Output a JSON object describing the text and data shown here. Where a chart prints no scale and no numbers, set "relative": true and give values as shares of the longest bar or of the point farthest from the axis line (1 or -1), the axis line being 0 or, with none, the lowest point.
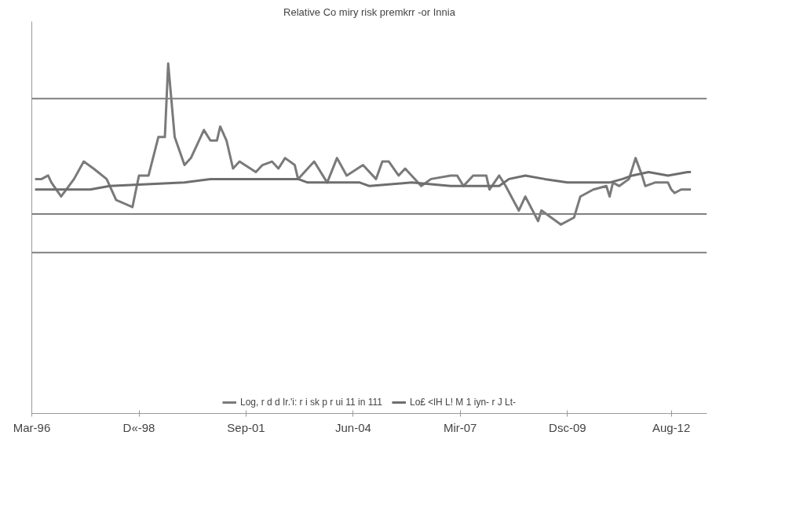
{
  "chart_data": {
    "type": "line",
    "title": "Relative Co miry risk premkrr -or Innia",
    "relative": true,
    "grid": false,
    "legend": "bottom",
    "marker": "none",
    "line_style": "solid",
    "xlim": [
      "1996-03",
      "2013-07"
    ],
    "xticks": [
      {
        "value": "1996-03",
        "label": "Mar-96"
      },
      {
        "value": "1998-12",
        "label": "D«-98"
      },
      {
        "value": "2001-09",
        "label": "Sep-01"
      },
      {
        "value": "2004-06",
        "label": "Jun-04"
      },
      {
        "value": "2007-03",
        "label": "Mir-07"
      },
      {
        "value": "2009-12",
        "label": "Dsc-09"
      },
      {
        "value": "2012-08",
        "label": "Aug-12"
      }
    ],
    "ref_lines": [
      {
        "axis": "y",
        "value": 0.9,
        "label": null,
        "color": "#7f7f7f"
      },
      {
        "axis": "y",
        "value": 0.57,
        "label": null,
        "color": "#7f7f7f"
      },
      {
        "axis": "y",
        "value": 0.46,
        "label": null,
        "color": "#7f7f7f"
      }
    ],
    "series": [
      {
        "name": "Log, r d d Ir.'i: r i sk p r ui 11 in 111",
        "color": "#7a7a7a",
        "x": [
          "1996-04",
          "1996-06",
          "1996-08",
          "1996-09",
          "1996-12",
          "1997-04",
          "1997-07",
          "1997-10",
          "1998-02",
          "1998-05",
          "1998-10",
          "1998-12",
          "1999-03",
          "1999-06",
          "1999-08",
          "1999-09",
          "1999-11",
          "2000-02",
          "2000-04",
          "2000-08",
          "2000-10",
          "2000-12",
          "2001-01",
          "2001-03",
          "2001-05",
          "2001-07",
          "2001-12",
          "2002-02",
          "2002-05",
          "2002-07",
          "2002-09",
          "2002-12",
          "2003-01",
          "2003-06",
          "2003-10",
          "2004-01",
          "2004-04",
          "2004-09",
          "2005-01",
          "2005-03",
          "2005-05",
          "2005-08",
          "2005-10",
          "2006-03",
          "2006-06",
          "2006-12",
          "2007-02",
          "2007-04",
          "2007-07",
          "2007-11",
          "2007-12",
          "2008-03",
          "2008-05",
          "2008-09",
          "2008-11",
          "2009-03",
          "2009-04",
          "2009-10",
          "2010-02",
          "2010-04",
          "2010-08",
          "2010-12",
          "2011-01",
          "2011-02",
          "2011-04",
          "2011-07",
          "2011-09",
          "2011-11",
          "2011-12",
          "2012-03",
          "2012-07",
          "2012-08",
          "2012-09",
          "2012-11",
          "2013-02"
        ],
        "values": [
          0.67,
          0.67,
          0.68,
          0.66,
          0.62,
          0.67,
          0.72,
          0.7,
          0.67,
          0.61,
          0.59,
          0.68,
          0.68,
          0.79,
          0.79,
          1.0,
          0.79,
          0.71,
          0.73,
          0.81,
          0.78,
          0.78,
          0.82,
          0.78,
          0.7,
          0.72,
          0.69,
          0.71,
          0.72,
          0.7,
          0.73,
          0.71,
          0.67,
          0.72,
          0.66,
          0.73,
          0.68,
          0.71,
          0.67,
          0.72,
          0.72,
          0.68,
          0.7,
          0.65,
          0.67,
          0.68,
          0.68,
          0.65,
          0.68,
          0.68,
          0.64,
          0.68,
          0.65,
          0.58,
          0.62,
          0.55,
          0.58,
          0.54,
          0.56,
          0.62,
          0.64,
          0.65,
          0.62,
          0.66,
          0.65,
          0.67,
          0.73,
          0.68,
          0.65,
          0.66,
          0.66,
          0.64,
          0.63,
          0.64,
          0.64
        ]
      },
      {
        "name": "Lo£ <lH L! M 1 iyn- r J Lt-",
        "color": "#6e6e6e",
        "x": [
          "1996-04",
          "1997-09",
          "1998-03",
          "2000-02",
          "2000-10",
          "2001-06",
          "2003-01",
          "2003-04",
          "2004-08",
          "2004-11",
          "2005-12",
          "2006-12",
          "2007-05",
          "2007-11",
          "2008-03",
          "2008-06",
          "2008-11",
          "2009-05",
          "2009-12",
          "2010-03",
          "2010-08",
          "2011-01",
          "2011-05",
          "2011-08",
          "2012-01",
          "2012-07",
          "2013-01",
          "2013-02"
        ],
        "values": [
          0.64,
          0.64,
          0.65,
          0.66,
          0.67,
          0.67,
          0.67,
          0.66,
          0.66,
          0.65,
          0.66,
          0.65,
          0.65,
          0.65,
          0.65,
          0.67,
          0.68,
          0.67,
          0.66,
          0.66,
          0.66,
          0.66,
          0.67,
          0.68,
          0.69,
          0.68,
          0.69,
          0.69
        ]
      }
    ]
  }
}
